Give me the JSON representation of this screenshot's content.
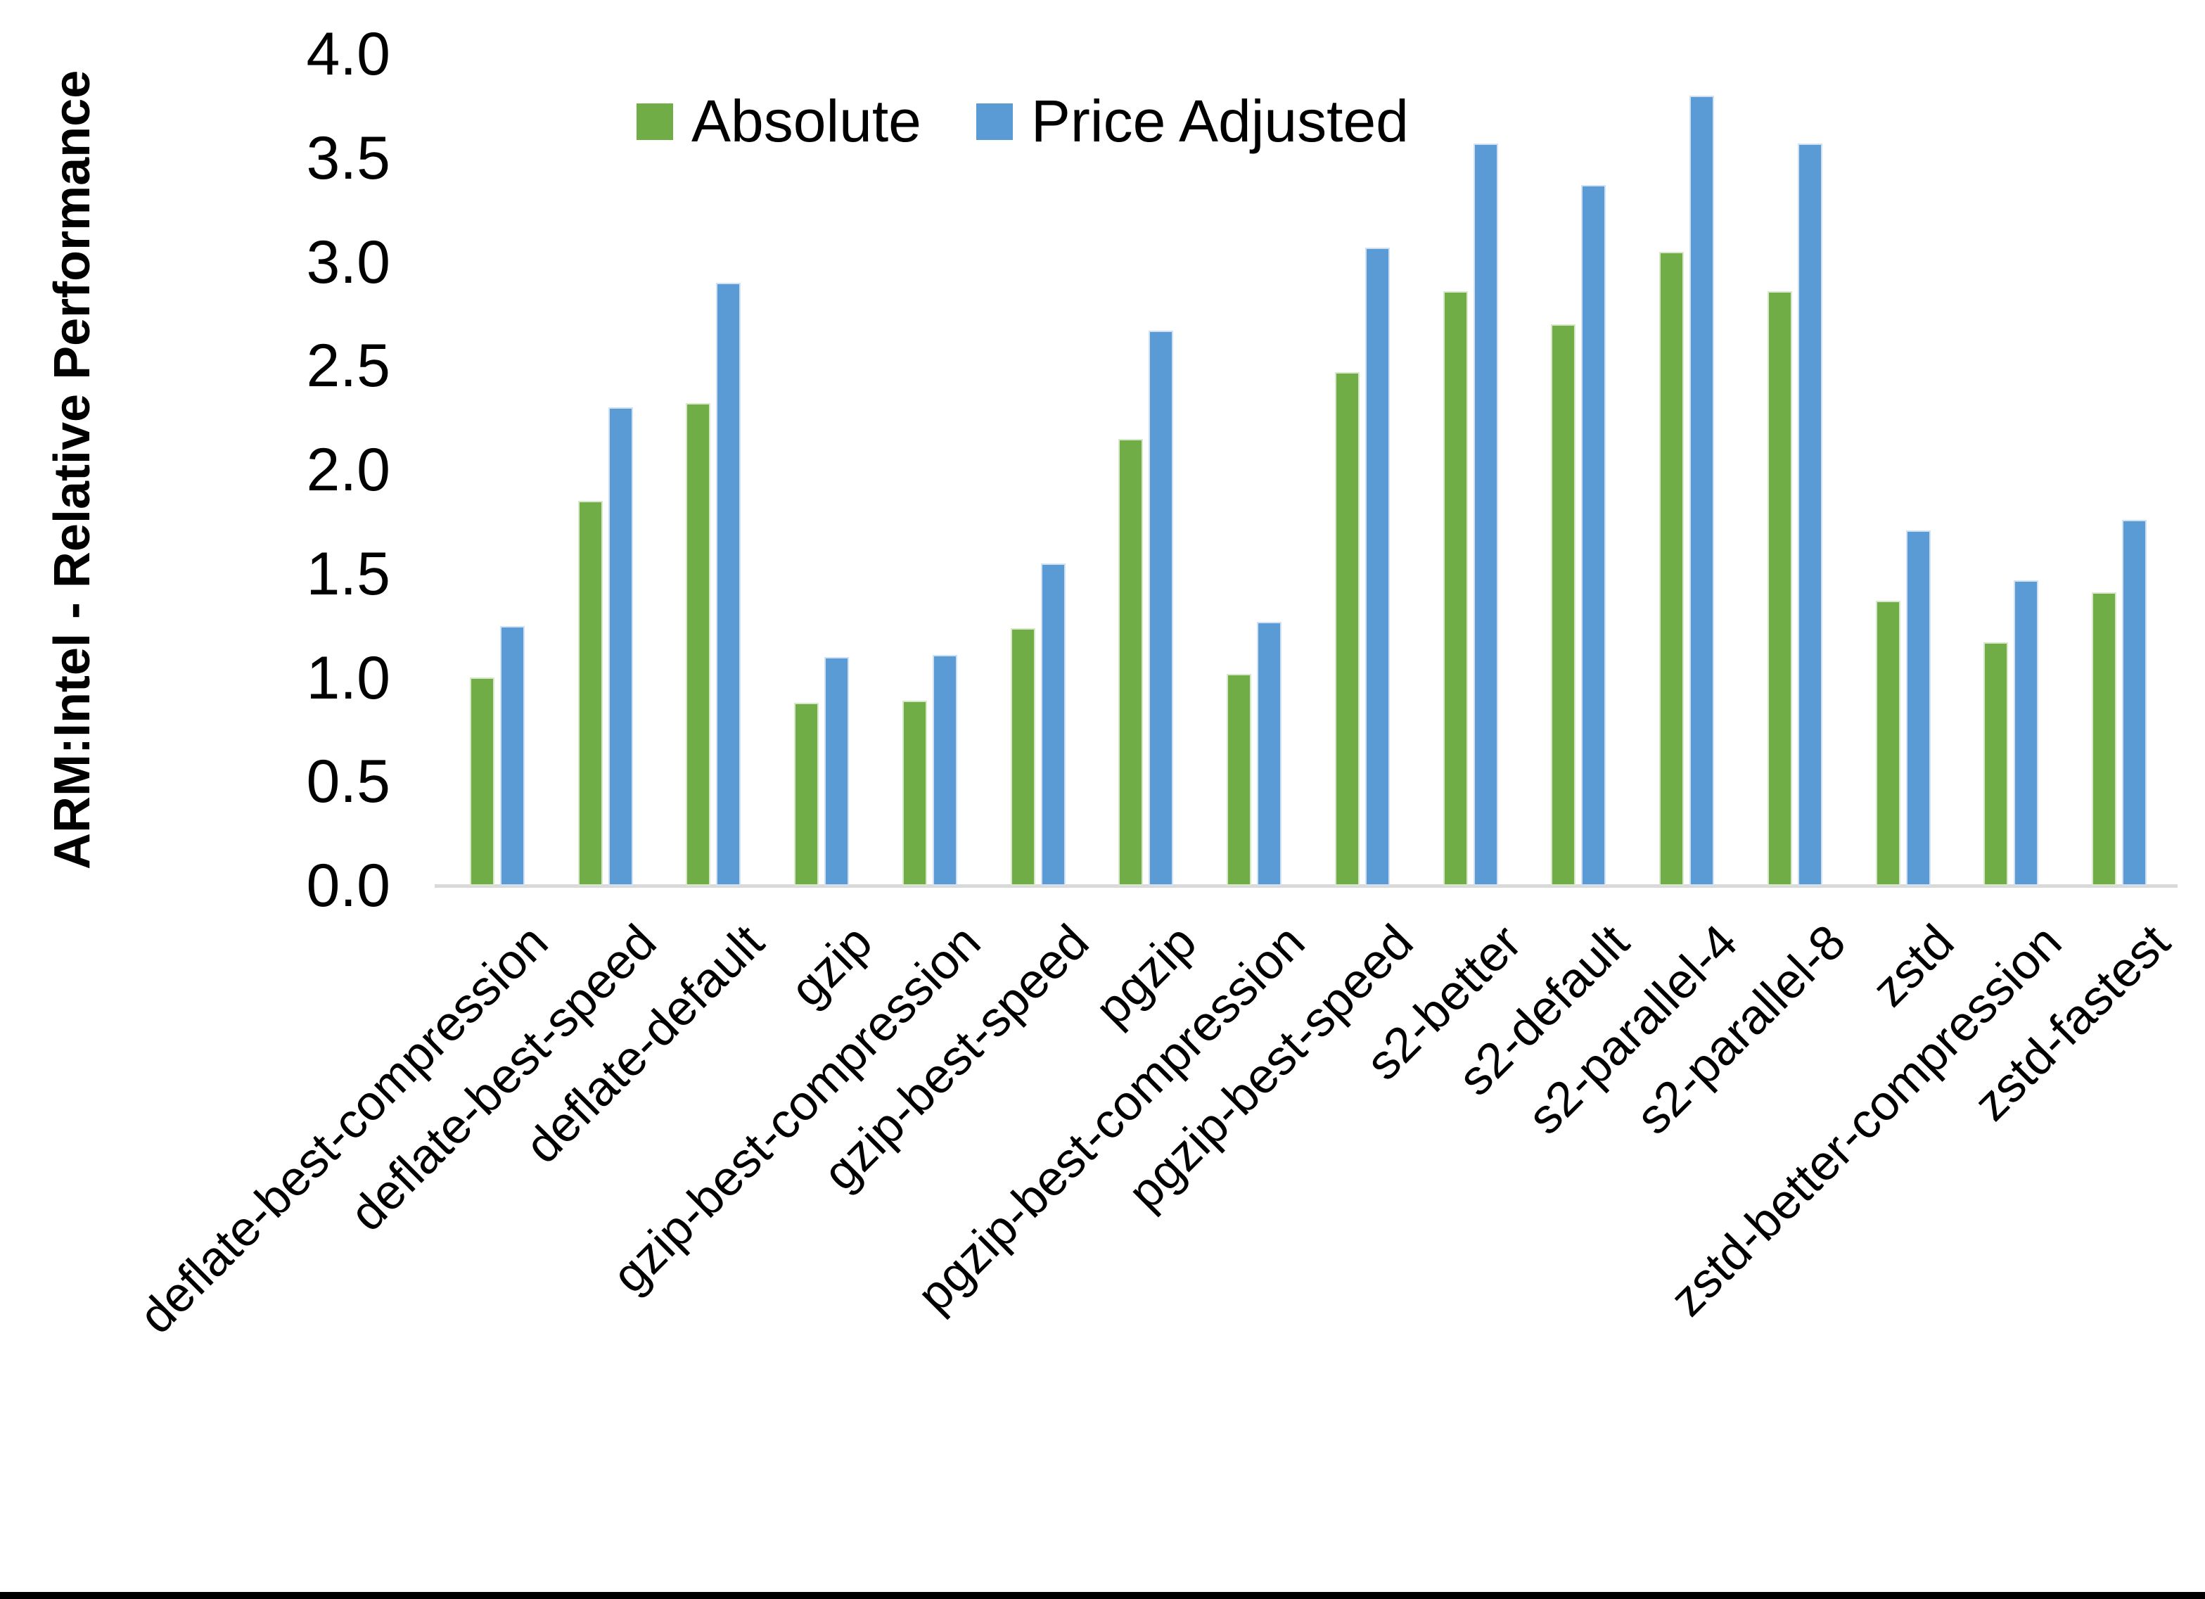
{
  "figure": {
    "background": "#ffffff",
    "baseline_color": "#d9d9d9",
    "bottom_border_color": "#000000"
  },
  "chart_data": {
    "type": "bar",
    "title": "",
    "xlabel": "",
    "ylabel": "ARM:Intel - Relative Performance",
    "ylim": [
      0.0,
      4.0
    ],
    "ytick_step": 0.5,
    "ytick_labels": [
      "0.0",
      "0.5",
      "1.0",
      "1.5",
      "2.0",
      "2.5",
      "3.0",
      "3.5",
      "4.0"
    ],
    "grid": false,
    "legend_position": "top-center",
    "categories": [
      "deflate-best-compression",
      "deflate-best-speed",
      "deflate-default",
      "gzip",
      "gzip-best-compression",
      "gzip-best-speed",
      "pgzip",
      "pgzip-best-compression",
      "pgzip-best-speed",
      "s2-better",
      "s2-default",
      "s2-parallel-4",
      "s2-parallel-8",
      "zstd",
      "zstd-better-compression",
      "zstd-fastest"
    ],
    "series": [
      {
        "name": "Absolute",
        "color": "#70AD47",
        "values": [
          1.0,
          1.85,
          2.32,
          0.88,
          0.89,
          1.24,
          2.15,
          1.02,
          2.47,
          2.86,
          2.7,
          3.05,
          2.86,
          1.37,
          1.17,
          1.41
        ]
      },
      {
        "name": "Price Adjusted",
        "color": "#5B9BD5",
        "values": [
          1.25,
          2.3,
          2.9,
          1.1,
          1.11,
          1.55,
          2.67,
          1.27,
          3.07,
          3.57,
          3.37,
          3.8,
          3.57,
          1.71,
          1.47,
          1.76
        ]
      }
    ]
  }
}
